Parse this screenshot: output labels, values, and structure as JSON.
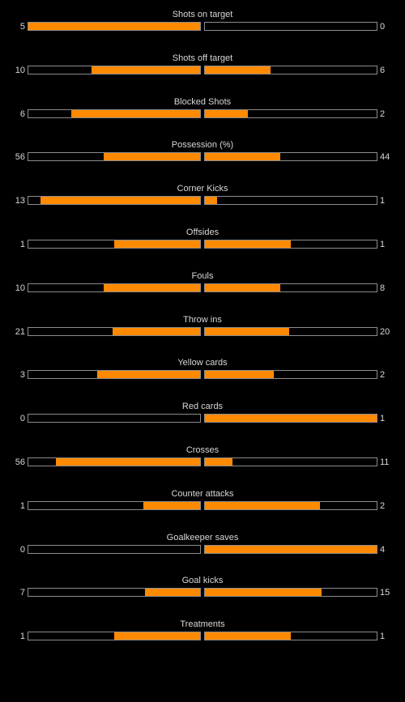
{
  "accent_color": "#ff8a00",
  "stats": [
    {
      "label": "Shots on target",
      "home": "5",
      "away": "0",
      "home_fill": 1.0,
      "away_fill": 0.0
    },
    {
      "label": "Shots off target",
      "home": "10",
      "away": "6",
      "home_fill": 0.63,
      "away_fill": 0.38
    },
    {
      "label": "Blocked Shots",
      "home": "6",
      "away": "2",
      "home_fill": 0.75,
      "away_fill": 0.25
    },
    {
      "label": "Possession (%)",
      "home": "56",
      "away": "44",
      "home_fill": 0.56,
      "away_fill": 0.44
    },
    {
      "label": "Corner Kicks",
      "home": "13",
      "away": "1",
      "home_fill": 0.93,
      "away_fill": 0.07
    },
    {
      "label": "Offsides",
      "home": "1",
      "away": "1",
      "home_fill": 0.5,
      "away_fill": 0.5
    },
    {
      "label": "Fouls",
      "home": "10",
      "away": "8",
      "home_fill": 0.56,
      "away_fill": 0.44
    },
    {
      "label": "Throw ins",
      "home": "21",
      "away": "20",
      "home_fill": 0.51,
      "away_fill": 0.49
    },
    {
      "label": "Yellow cards",
      "home": "3",
      "away": "2",
      "home_fill": 0.6,
      "away_fill": 0.4
    },
    {
      "label": "Red cards",
      "home": "0",
      "away": "1",
      "home_fill": 0.0,
      "away_fill": 1.0
    },
    {
      "label": "Crosses",
      "home": "56",
      "away": "11",
      "home_fill": 0.84,
      "away_fill": 0.16
    },
    {
      "label": "Counter attacks",
      "home": "1",
      "away": "2",
      "home_fill": 0.33,
      "away_fill": 0.67
    },
    {
      "label": "Goalkeeper saves",
      "home": "0",
      "away": "4",
      "home_fill": 0.0,
      "away_fill": 1.0
    },
    {
      "label": "Goal kicks",
      "home": "7",
      "away": "15",
      "home_fill": 0.32,
      "away_fill": 0.68
    },
    {
      "label": "Treatments",
      "home": "1",
      "away": "1",
      "home_fill": 0.5,
      "away_fill": 0.5
    }
  ]
}
